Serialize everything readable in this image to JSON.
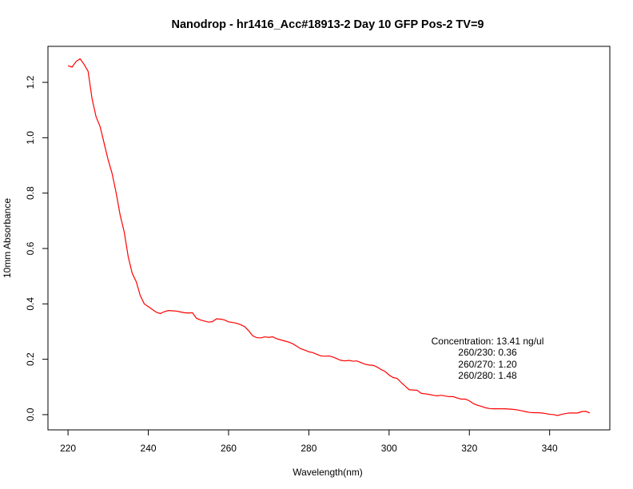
{
  "chart_data": {
    "type": "line",
    "title": "Nanodrop - hr1416_Acc#18913-2 Day 10 GFP Pos-2 TV=9",
    "xlabel": "Wavelength(nm)",
    "ylabel": "10mm Absorbance",
    "xlim": [
      215,
      355
    ],
    "ylim": [
      -0.055,
      1.33
    ],
    "x_ticks": [
      220,
      240,
      260,
      280,
      300,
      320,
      340
    ],
    "y_ticks": [
      0.0,
      0.2,
      0.4,
      0.6,
      0.8,
      1.0,
      1.2
    ],
    "x_tick_labels": [
      "220",
      "240",
      "260",
      "280",
      "300",
      "320",
      "340"
    ],
    "y_tick_labels": [
      "0.0",
      "0.2",
      "0.4",
      "0.6",
      "0.8",
      "1.0",
      "1.2"
    ],
    "grid": false,
    "series": [
      {
        "color": "#ff0000",
        "x": [
          220,
          221,
          222,
          223,
          224,
          225,
          226,
          227,
          228,
          229,
          230,
          231,
          232,
          233,
          234,
          235,
          236,
          237,
          238,
          239,
          240,
          241,
          242,
          243,
          244,
          245,
          246,
          247,
          248,
          249,
          250,
          251,
          252,
          253,
          254,
          255,
          256,
          257,
          258,
          259,
          260,
          261,
          262,
          263,
          264,
          265,
          266,
          267,
          268,
          269,
          270,
          271,
          272,
          273,
          274,
          275,
          276,
          277,
          278,
          279,
          280,
          281,
          282,
          283,
          284,
          285,
          286,
          287,
          288,
          289,
          290,
          291,
          292,
          293,
          294,
          295,
          296,
          297,
          298,
          299,
          300,
          301,
          302,
          303,
          304,
          305,
          306,
          307,
          308,
          309,
          310,
          311,
          312,
          313,
          314,
          315,
          316,
          317,
          318,
          319,
          320,
          321,
          322,
          323,
          324,
          325,
          326,
          327,
          328,
          329,
          330,
          331,
          332,
          333,
          334,
          335,
          336,
          337,
          338,
          339,
          340,
          341,
          342,
          343,
          344,
          345,
          346,
          347,
          348,
          349,
          350
        ],
        "y": [
          1.26,
          1.255,
          1.275,
          1.285,
          1.265,
          1.24,
          1.14,
          1.075,
          1.04,
          0.98,
          0.92,
          0.87,
          0.8,
          0.72,
          0.66,
          0.57,
          0.51,
          0.48,
          0.43,
          0.4,
          0.39,
          0.38,
          0.37,
          0.365,
          0.372,
          0.376,
          0.375,
          0.374,
          0.371,
          0.368,
          0.367,
          0.368,
          0.348,
          0.342,
          0.338,
          0.334,
          0.336,
          0.346,
          0.345,
          0.342,
          0.335,
          0.333,
          0.33,
          0.325,
          0.318,
          0.303,
          0.285,
          0.278,
          0.277,
          0.281,
          0.279,
          0.281,
          0.274,
          0.27,
          0.266,
          0.262,
          0.256,
          0.247,
          0.238,
          0.233,
          0.227,
          0.224,
          0.218,
          0.212,
          0.211,
          0.212,
          0.208,
          0.202,
          0.196,
          0.194,
          0.196,
          0.193,
          0.194,
          0.188,
          0.182,
          0.179,
          0.178,
          0.172,
          0.163,
          0.156,
          0.143,
          0.134,
          0.131,
          0.116,
          0.103,
          0.09,
          0.089,
          0.088,
          0.077,
          0.075,
          0.073,
          0.07,
          0.068,
          0.07,
          0.067,
          0.065,
          0.065,
          0.06,
          0.056,
          0.056,
          0.05,
          0.04,
          0.034,
          0.03,
          0.025,
          0.022,
          0.021,
          0.021,
          0.021,
          0.021,
          0.02,
          0.019,
          0.017,
          0.014,
          0.011,
          0.008,
          0.007,
          0.007,
          0.006,
          0.004,
          0.001,
          0.0,
          -0.003,
          0.001,
          0.004,
          0.006,
          0.006,
          0.006,
          0.011,
          0.012,
          0.006
        ]
      }
    ],
    "annotations": [
      "Concentration: 13.41 ng/ul",
      "260/230: 0.36",
      "260/270: 1.20",
      "260/280: 1.48"
    ]
  }
}
